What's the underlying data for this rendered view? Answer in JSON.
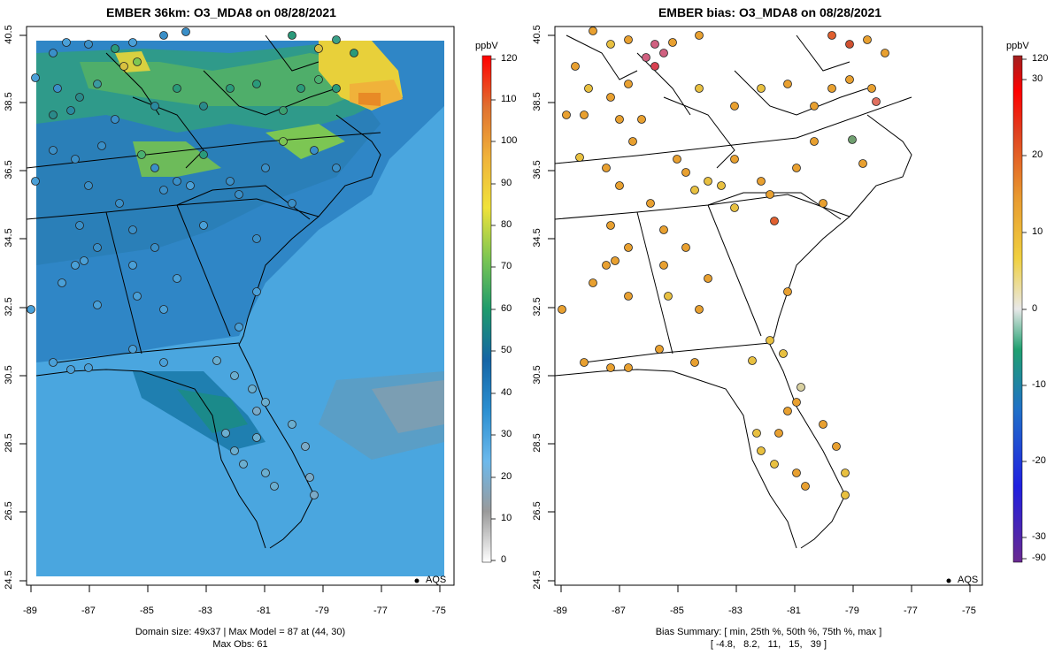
{
  "left_panel": {
    "title": "EMBER 36km: O3_MDA8 on 08/28/2021",
    "summary_line1": "Domain size: 49x37 | Max Model = 87 at (44, 30)",
    "summary_line2": "Max Obs: 61",
    "legend_label": "AQS",
    "colorbar_unit": "ppbV",
    "colorbar_ticks": [
      "120",
      "110",
      "100",
      "90",
      "80",
      "70",
      "60",
      "50",
      "40",
      "30",
      "20",
      "10",
      "0"
    ]
  },
  "right_panel": {
    "title": "EMBER bias: O3_MDA8 on 08/28/2021",
    "summary_line1": "Bias Summary: [ min, 25th %, 50th %, 75th %, max ]",
    "summary_line2": "[ -4.8,   8.2,   11,   15,   39 ]",
    "legend_label": "AQS",
    "colorbar_unit": "ppbV",
    "colorbar_ticks": [
      "120",
      "30",
      "20",
      "10",
      "0",
      "-10",
      "-20",
      "-30",
      "-90"
    ]
  },
  "x_ticks": [
    "-89",
    "-87",
    "-85",
    "-83",
    "-81",
    "-79",
    "-77",
    "-75"
  ],
  "y_ticks": [
    "24.5",
    "26.5",
    "28.5",
    "30.5",
    "32.5",
    "34.5",
    "36.5",
    "38.5",
    "40.5"
  ],
  "colors": {
    "ocean_model": "#4aa6df",
    "land_low": "#3f86c8",
    "ozone_mid": "#2a9a7a",
    "ozone_high": "#e8c43a",
    "ozone_peak": "#e78a22",
    "bias_typical": "#e2a035"
  }
}
